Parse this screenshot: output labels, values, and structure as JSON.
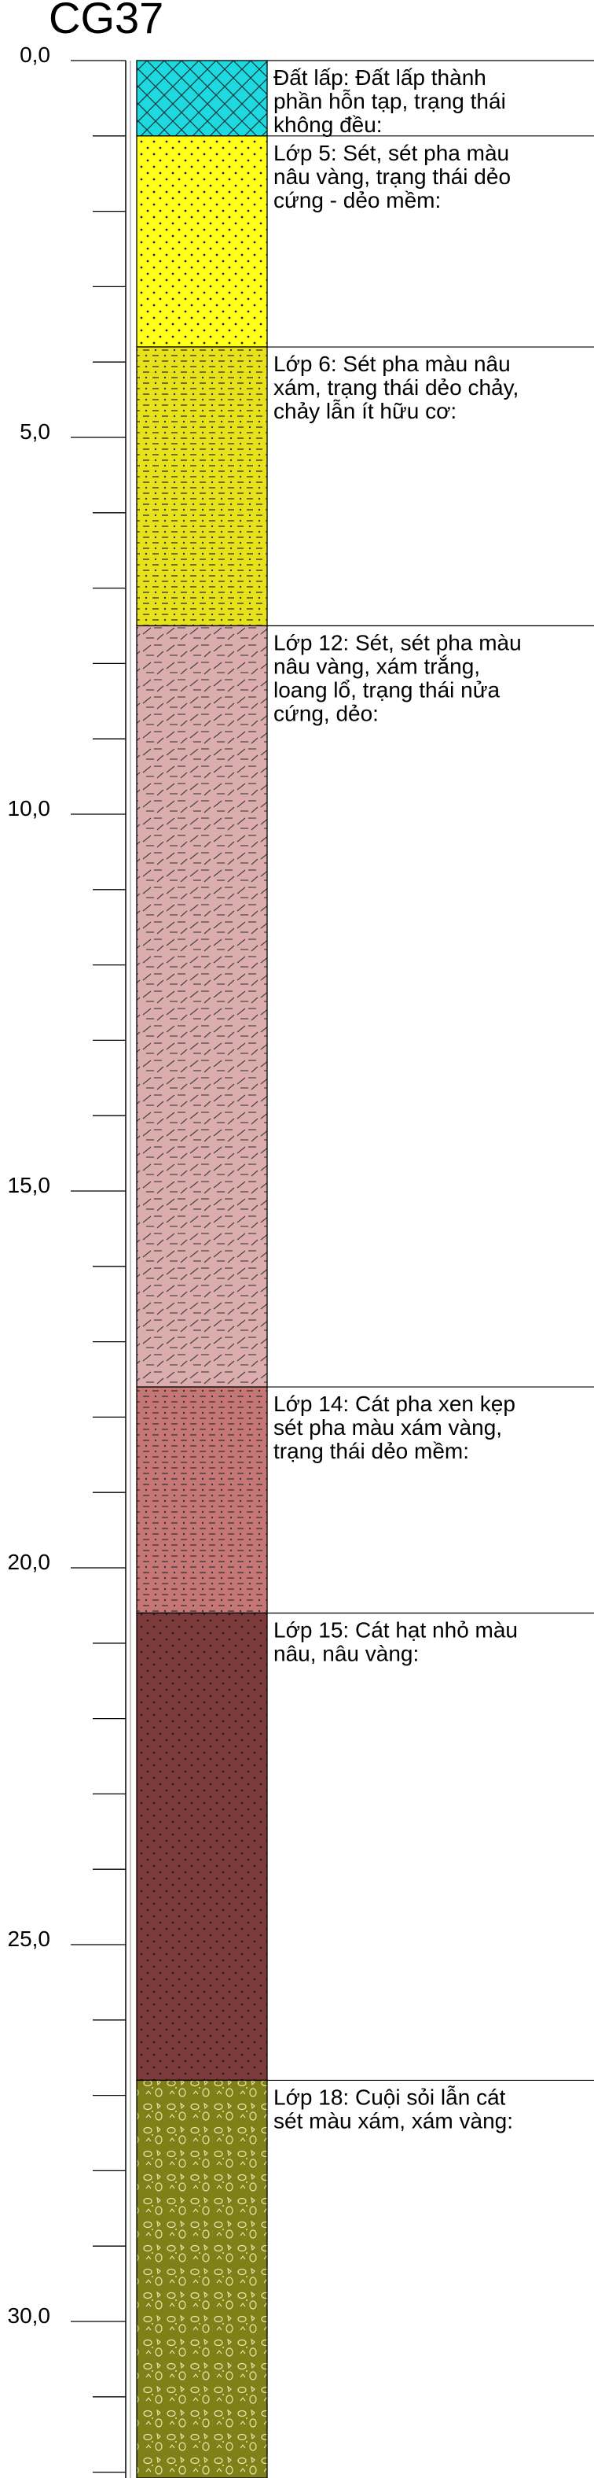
{
  "title": "CG37",
  "depth_axis": {
    "min": 0,
    "max": 32.8,
    "major_step": 5,
    "minor_step": 1,
    "labels": [
      "0,0",
      "5,0",
      "10,0",
      "15,0",
      "20,0",
      "25,0",
      "30,0"
    ]
  },
  "layers": [
    {
      "top": 0.0,
      "bottom": 1.0,
      "fill": "#1fd9e0",
      "pattern": "crosshatch",
      "lines": [
        "Đất lấp: Đất lấp thành",
        "phần hỗn tạp, trạng thái",
        "không đều:"
      ]
    },
    {
      "top": 1.0,
      "bottom": 3.8,
      "fill": "#ffff1a",
      "pattern": "dots",
      "lines": [
        "Lớp 5: Sét, sét pha màu",
        "nâu vàng, trạng thái dẻo",
        "cứng - dẻo mềm:"
      ]
    },
    {
      "top": 3.8,
      "bottom": 7.5,
      "fill": "#e8e21a",
      "pattern": "dash-dot",
      "lines": [
        "Lớp 6: Sét pha màu nâu",
        "xám, trạng thái dẻo chảy,",
        "chảy lẫn ít hữu cơ:"
      ]
    },
    {
      "top": 7.5,
      "bottom": 17.6,
      "fill": "#dcadad",
      "pattern": "slash-dash",
      "lines": [
        "Lớp 12: Sét, sét pha màu",
        "nâu vàng, xám trắng,",
        "loang lổ, trạng thái nửa",
        "cứng, dẻo:"
      ]
    },
    {
      "top": 17.6,
      "bottom": 20.6,
      "fill": "#c77676",
      "pattern": "dash-dot",
      "lines": [
        "Lớp 14: Cát pha xen kẹp",
        "sét pha màu xám vàng,",
        "trạng thái dẻo mềm:"
      ]
    },
    {
      "top": 20.6,
      "bottom": 26.8,
      "fill": "#7d3a3a",
      "pattern": "dots",
      "lines": [
        "Lớp 15: Cát hạt nhỏ màu",
        "nâu, nâu vàng:"
      ]
    },
    {
      "top": 26.8,
      "bottom": 32.8,
      "fill": "#808019",
      "pattern": "gravel",
      "lines": [
        "Lớp 18: Cuội sỏi lẫn cát",
        "sét màu xám, xám vàng:"
      ]
    }
  ]
}
